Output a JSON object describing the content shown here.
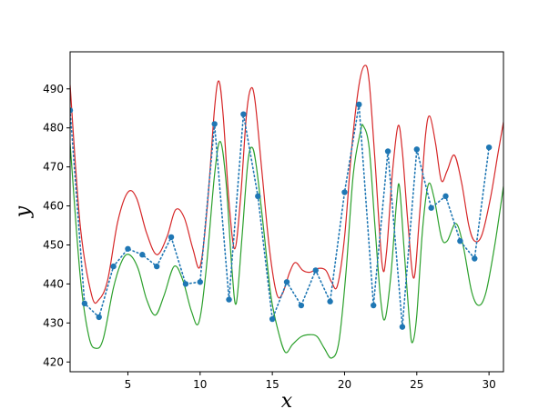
{
  "chart_data": {
    "type": "line",
    "title": "",
    "xlabel": "x",
    "ylabel": "y",
    "xlim": [
      1,
      31
    ],
    "ylim": [
      417.5,
      499.5
    ],
    "x_ticks": [
      5,
      10,
      15,
      20,
      25,
      30
    ],
    "y_ticks": [
      420,
      430,
      440,
      450,
      460,
      470,
      480,
      490
    ],
    "grid": false,
    "legend": "none",
    "series": [
      {
        "style": "dotted-with-markers",
        "color": "#1f77b4",
        "points": [
          [
            1,
            484.5
          ],
          [
            2,
            435
          ],
          [
            3,
            431.5
          ],
          [
            4,
            444.5
          ],
          [
            5,
            449
          ],
          [
            6,
            447.5
          ],
          [
            7,
            444.5
          ],
          [
            8,
            452
          ],
          [
            9,
            440
          ],
          [
            10,
            440.5
          ],
          [
            11,
            481
          ],
          [
            12,
            436
          ],
          [
            13,
            483.5
          ],
          [
            14,
            462.5
          ],
          [
            15,
            431
          ],
          [
            16,
            440.5
          ],
          [
            17,
            434.5
          ],
          [
            18,
            443.5
          ],
          [
            19,
            435.5
          ],
          [
            20,
            463.5
          ],
          [
            21,
            486
          ],
          [
            22,
            434.5
          ],
          [
            23,
            474
          ],
          [
            24,
            429
          ],
          [
            25,
            474.5
          ],
          [
            26,
            459.5
          ],
          [
            27,
            462.5
          ],
          [
            28,
            451
          ],
          [
            29,
            446.5
          ],
          [
            30,
            475
          ]
        ]
      },
      {
        "style": "line",
        "color": "#d62728",
        "points": [
          [
            1,
            491
          ],
          [
            1.7,
            455
          ],
          [
            2.5,
            437
          ],
          [
            3.0,
            436
          ],
          [
            3.6,
            441
          ],
          [
            4.3,
            456
          ],
          [
            5,
            463.5
          ],
          [
            5.6,
            462
          ],
          [
            6.3,
            453
          ],
          [
            7,
            447.5
          ],
          [
            7.7,
            452
          ],
          [
            8.3,
            459
          ],
          [
            8.9,
            457
          ],
          [
            9.5,
            449
          ],
          [
            10,
            444.5
          ],
          [
            10.5,
            460
          ],
          [
            11,
            485
          ],
          [
            11.3,
            492
          ],
          [
            11.6,
            483
          ],
          [
            12,
            461
          ],
          [
            12.4,
            449
          ],
          [
            12.8,
            462
          ],
          [
            13.2,
            483
          ],
          [
            13.5,
            490
          ],
          [
            13.8,
            487
          ],
          [
            14.3,
            468
          ],
          [
            14.8,
            449
          ],
          [
            15.3,
            437.5
          ],
          [
            15.7,
            437.5
          ],
          [
            16.2,
            443
          ],
          [
            16.6,
            445.5
          ],
          [
            17.1,
            443.5
          ],
          [
            17.6,
            443
          ],
          [
            18.2,
            444
          ],
          [
            18.7,
            443.5
          ],
          [
            19.1,
            440.5
          ],
          [
            19.5,
            439.5
          ],
          [
            20,
            452
          ],
          [
            20.5,
            475
          ],
          [
            21,
            491
          ],
          [
            21.4,
            496
          ],
          [
            21.7,
            492
          ],
          [
            22.1,
            472
          ],
          [
            22.6,
            445
          ],
          [
            22.9,
            448
          ],
          [
            23.3,
            468
          ],
          [
            23.7,
            480.5
          ],
          [
            24,
            474
          ],
          [
            24.4,
            455
          ],
          [
            24.8,
            441.5
          ],
          [
            25.2,
            458
          ],
          [
            25.6,
            478
          ],
          [
            25.9,
            483
          ],
          [
            26.3,
            476
          ],
          [
            26.7,
            466.5
          ],
          [
            27.1,
            469
          ],
          [
            27.6,
            473
          ],
          [
            28.1,
            466
          ],
          [
            28.6,
            455
          ],
          [
            29,
            451
          ],
          [
            29.5,
            452.5
          ],
          [
            30.1,
            462
          ],
          [
            30.6,
            473
          ],
          [
            31,
            481.5
          ]
        ]
      },
      {
        "style": "line",
        "color": "#2ca02c",
        "points": [
          [
            1,
            476
          ],
          [
            1.7,
            442
          ],
          [
            2.3,
            426.5
          ],
          [
            2.8,
            423.5
          ],
          [
            3.3,
            426
          ],
          [
            4,
            439
          ],
          [
            4.6,
            446
          ],
          [
            5.1,
            447.5
          ],
          [
            5.7,
            444
          ],
          [
            6.3,
            436
          ],
          [
            6.9,
            432
          ],
          [
            7.5,
            437
          ],
          [
            8.2,
            444.5
          ],
          [
            8.8,
            441
          ],
          [
            9.4,
            433
          ],
          [
            9.9,
            430
          ],
          [
            10.4,
            443
          ],
          [
            11,
            468
          ],
          [
            11.4,
            476.5
          ],
          [
            11.8,
            466
          ],
          [
            12.2,
            444
          ],
          [
            12.5,
            435
          ],
          [
            12.9,
            452
          ],
          [
            13.3,
            471
          ],
          [
            13.6,
            475
          ],
          [
            13.9,
            470
          ],
          [
            14.4,
            454
          ],
          [
            14.9,
            437
          ],
          [
            15.4,
            428
          ],
          [
            15.9,
            422.5
          ],
          [
            16.4,
            424.5
          ],
          [
            17,
            426.5
          ],
          [
            17.6,
            427
          ],
          [
            18.1,
            426.5
          ],
          [
            18.6,
            423.5
          ],
          [
            19.1,
            421
          ],
          [
            19.6,
            425
          ],
          [
            20.1,
            443
          ],
          [
            20.6,
            468
          ],
          [
            21.1,
            479
          ],
          [
            21.3,
            480.5
          ],
          [
            21.7,
            475
          ],
          [
            22.1,
            455
          ],
          [
            22.5,
            436
          ],
          [
            22.8,
            431
          ],
          [
            23.2,
            442
          ],
          [
            23.6,
            461
          ],
          [
            23.8,
            465
          ],
          [
            24.1,
            450
          ],
          [
            24.5,
            430
          ],
          [
            24.7,
            425
          ],
          [
            25,
            432
          ],
          [
            25.4,
            454
          ],
          [
            25.8,
            465.5
          ],
          [
            26.2,
            462
          ],
          [
            26.7,
            452
          ],
          [
            27.1,
            451
          ],
          [
            27.7,
            455.5
          ],
          [
            28.2,
            450
          ],
          [
            28.8,
            438
          ],
          [
            29.3,
            434.5
          ],
          [
            29.8,
            438
          ],
          [
            30.4,
            450
          ],
          [
            31,
            465
          ]
        ]
      }
    ]
  }
}
